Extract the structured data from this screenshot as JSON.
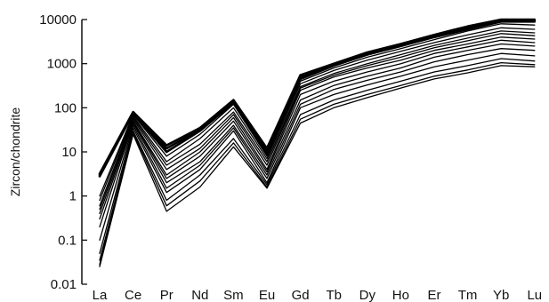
{
  "chart_data": {
    "type": "line",
    "title": "",
    "xlabel": "",
    "ylabel": "Zircon/chondrite",
    "yscale": "log",
    "ylim": [
      0.01,
      10000
    ],
    "y_tick_labels": [
      "0.01",
      "0.1",
      "1",
      "10",
      "100",
      "1000",
      "10000"
    ],
    "y_ticks": [
      0.01,
      0.1,
      1,
      10,
      100,
      1000,
      10000
    ],
    "categories": [
      "La",
      "Ce",
      "Pr",
      "Nd",
      "Sm",
      "Eu",
      "Gd",
      "Tb",
      "Dy",
      "Ho",
      "Er",
      "Tm",
      "Yb",
      "Lu"
    ],
    "grid": false,
    "legend": "none",
    "line_color": "#000000",
    "series": [
      {
        "values": [
          3.2,
          80,
          14,
          35,
          150,
          12,
          550,
          1000,
          1800,
          2800,
          4500,
          7000,
          10000,
          10000
        ]
      },
      {
        "values": [
          3.0,
          78,
          12,
          32,
          140,
          10,
          500,
          950,
          1700,
          2600,
          4200,
          6500,
          9500,
          9500
        ]
      },
      {
        "values": [
          2.8,
          75,
          10,
          30,
          130,
          9,
          450,
          900,
          1600,
          2500,
          4000,
          6000,
          9000,
          9000
        ]
      },
      {
        "values": [
          1.0,
          70,
          8,
          25,
          120,
          8,
          400,
          800,
          1400,
          2200,
          3500,
          5500,
          8000,
          7500
        ]
      },
      {
        "values": [
          0.8,
          65,
          6,
          20,
          100,
          7,
          350,
          700,
          1200,
          1900,
          3000,
          4500,
          6500,
          6000
        ]
      },
      {
        "values": [
          0.6,
          60,
          5,
          15,
          80,
          6,
          300,
          600,
          1000,
          1600,
          2600,
          3800,
          5500,
          5000
        ]
      },
      {
        "values": [
          0.5,
          55,
          4,
          12,
          70,
          5,
          280,
          550,
          900,
          1400,
          2300,
          3300,
          4800,
          4300
        ]
      },
      {
        "values": [
          0.4,
          50,
          3,
          10,
          60,
          4,
          250,
          500,
          800,
          1200,
          2000,
          2800,
          4000,
          3600
        ]
      },
      {
        "values": [
          0.3,
          48,
          2.5,
          8,
          50,
          3.5,
          200,
          400,
          650,
          1000,
          1700,
          2400,
          3400,
          3000
        ]
      },
      {
        "values": [
          0.2,
          45,
          2,
          6,
          40,
          3,
          150,
          320,
          520,
          800,
          1400,
          2000,
          2800,
          2500
        ]
      },
      {
        "values": [
          0.1,
          40,
          1.5,
          5,
          35,
          2.5,
          120,
          260,
          420,
          650,
          1100,
          1600,
          2200,
          2000
        ]
      },
      {
        "values": [
          0.05,
          35,
          1.2,
          4,
          30,
          2,
          100,
          200,
          330,
          520,
          850,
          1200,
          1700,
          1500
        ]
      },
      {
        "values": [
          0.035,
          30,
          0.8,
          3,
          20,
          1.8,
          70,
          150,
          250,
          400,
          650,
          900,
          1300,
          1150
        ]
      },
      {
        "values": [
          0.028,
          28,
          0.6,
          2.2,
          16,
          1.6,
          55,
          120,
          200,
          320,
          520,
          720,
          1050,
          950
        ]
      },
      {
        "values": [
          0.025,
          25,
          0.45,
          1.6,
          13,
          1.5,
          45,
          100,
          170,
          280,
          450,
          620,
          900,
          850
        ]
      }
    ]
  }
}
